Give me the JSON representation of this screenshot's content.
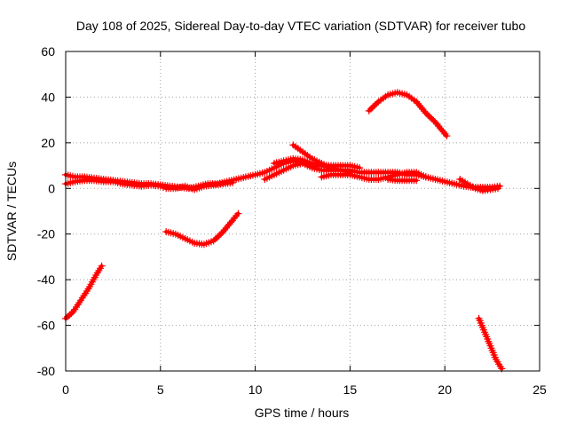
{
  "chart_data": {
    "type": "scatter",
    "title": "Day 108 of 2025, Sidereal Day-to-day VTEC variation (SDTVAR) for receiver tubo",
    "xlabel": "GPS time / hours",
    "ylabel": "SDTVAR / TECUs",
    "xlim": [
      0,
      25
    ],
    "ylim": [
      -80,
      60
    ],
    "xticks": [
      0,
      5,
      10,
      15,
      20,
      25
    ],
    "yticks": [
      -80,
      -60,
      -40,
      -20,
      0,
      20,
      40,
      60
    ],
    "grid": true,
    "marker": "plus",
    "series": [
      {
        "name": "SDTVAR",
        "color": "#ff0000",
        "tracks": [
          [
            [
              0,
              -57
            ],
            [
              0.4,
              -54
            ],
            [
              0.8,
              -49
            ],
            [
              1.2,
              -44
            ],
            [
              1.6,
              -38
            ],
            [
              1.9,
              -34
            ]
          ],
          [
            [
              0,
              6
            ],
            [
              0.5,
              5
            ],
            [
              1,
              5
            ],
            [
              1.5,
              4.5
            ],
            [
              2,
              4
            ],
            [
              2.5,
              3.5
            ],
            [
              3,
              3
            ],
            [
              3.5,
              2.5
            ],
            [
              4,
              2
            ],
            [
              4.5,
              2
            ],
            [
              5,
              1.5
            ],
            [
              5.5,
              1
            ],
            [
              6,
              0.5
            ],
            [
              6.5,
              0
            ],
            [
              7,
              1
            ],
            [
              7.5,
              2
            ],
            [
              8,
              2
            ],
            [
              8.5,
              3
            ],
            [
              9,
              4
            ],
            [
              9.5,
              5
            ],
            [
              10,
              6
            ],
            [
              10.5,
              7
            ],
            [
              11,
              9
            ],
            [
              11.5,
              11
            ],
            [
              12,
              12
            ],
            [
              12.5,
              11
            ],
            [
              13,
              9
            ],
            [
              13.5,
              8
            ],
            [
              14,
              8
            ],
            [
              14.5,
              8
            ],
            [
              15,
              8
            ],
            [
              15.5,
              7
            ],
            [
              16,
              7
            ],
            [
              16.5,
              7
            ],
            [
              17,
              7
            ],
            [
              17.5,
              7
            ],
            [
              18,
              6
            ],
            [
              18.5,
              6
            ],
            [
              19,
              5
            ],
            [
              19.5,
              4
            ],
            [
              20,
              3
            ],
            [
              20.5,
              2
            ],
            [
              21,
              1
            ],
            [
              21.5,
              0.5
            ],
            [
              22,
              0.5
            ],
            [
              22.5,
              0.5
            ],
            [
              22.9,
              1
            ]
          ],
          [
            [
              0,
              2
            ],
            [
              0.5,
              3
            ],
            [
              1,
              3.5
            ],
            [
              1.5,
              3.5
            ],
            [
              2,
              3
            ],
            [
              2.5,
              3
            ],
            [
              3,
              2
            ],
            [
              3.5,
              1.5
            ],
            [
              4,
              1
            ],
            [
              4.5,
              1.5
            ],
            [
              5,
              1
            ],
            [
              5.3,
              0
            ],
            [
              5.8,
              0
            ],
            [
              6.3,
              1
            ],
            [
              6.8,
              -0.5
            ],
            [
              7.3,
              1
            ],
            [
              7.8,
              1.5
            ],
            [
              8.3,
              2
            ],
            [
              8.8,
              2.5
            ]
          ],
          [
            [
              10.5,
              4
            ],
            [
              11,
              6
            ],
            [
              11.5,
              8
            ],
            [
              12,
              10
            ],
            [
              12.5,
              11
            ],
            [
              13,
              10
            ],
            [
              13.5,
              10
            ],
            [
              14,
              10
            ],
            [
              14.5,
              10
            ],
            [
              15,
              10
            ],
            [
              15.5,
              9
            ]
          ],
          [
            [
              11,
              11
            ],
            [
              11.5,
              12
            ],
            [
              12,
              13
            ],
            [
              12.5,
              12.5
            ],
            [
              13,
              11
            ],
            [
              13.5,
              10
            ],
            [
              14,
              9
            ],
            [
              14.5,
              8
            ],
            [
              15,
              7
            ]
          ],
          [
            [
              12,
              19
            ],
            [
              12.5,
              16
            ],
            [
              13,
              13
            ],
            [
              13.5,
              11
            ],
            [
              14,
              9
            ]
          ],
          [
            [
              13.5,
              5
            ],
            [
              14,
              6
            ],
            [
              14.5,
              6
            ],
            [
              15,
              6
            ],
            [
              15.5,
              5
            ],
            [
              16,
              4
            ],
            [
              16.5,
              4
            ],
            [
              17,
              5
            ],
            [
              17.5,
              6
            ],
            [
              18,
              7
            ],
            [
              18.5,
              7
            ],
            [
              19,
              5
            ]
          ],
          [
            [
              17,
              4
            ],
            [
              17.5,
              3.5
            ],
            [
              18,
              3.5
            ],
            [
              18.5,
              3.5
            ]
          ],
          [
            [
              5.3,
              -19
            ],
            [
              5.8,
              -20
            ],
            [
              6.3,
              -22
            ],
            [
              6.8,
              -24
            ],
            [
              7.3,
              -24.5
            ],
            [
              7.8,
              -23
            ],
            [
              8.3,
              -19
            ],
            [
              8.8,
              -14
            ],
            [
              9.1,
              -11
            ]
          ],
          [
            [
              16,
              34
            ],
            [
              16.5,
              38
            ],
            [
              17,
              41
            ],
            [
              17.5,
              42
            ],
            [
              18,
              41
            ],
            [
              18.5,
              38
            ],
            [
              19,
              33
            ],
            [
              19.5,
              29
            ],
            [
              20.1,
              23
            ]
          ],
          [
            [
              20.8,
              4
            ],
            [
              21.2,
              2
            ],
            [
              21.6,
              0
            ],
            [
              22,
              -1
            ],
            [
              22.4,
              -0.5
            ],
            [
              22.8,
              0
            ]
          ],
          [
            [
              21.8,
              -57
            ],
            [
              22.1,
              -63
            ],
            [
              22.4,
              -69
            ],
            [
              22.7,
              -75
            ],
            [
              23,
              -79
            ]
          ]
        ]
      }
    ]
  }
}
